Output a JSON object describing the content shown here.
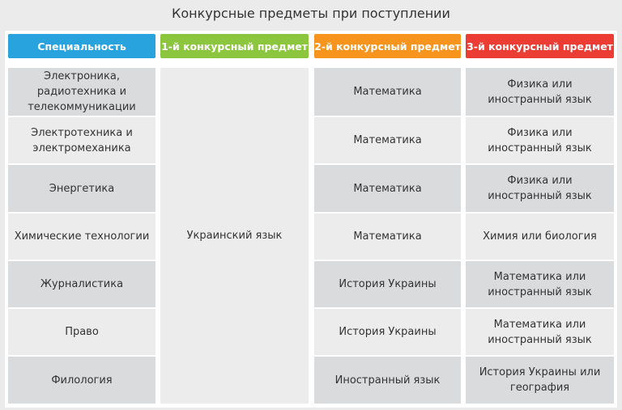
{
  "title": "Конкурсные предметы при поступлении",
  "headers": [
    {
      "label": "Специальность",
      "color": "#29a3dd"
    },
    {
      "label": "1-й конкурсный предмет",
      "color": "#8cc63f"
    },
    {
      "label": "2-й конкурсный предмет",
      "color": "#f7941d"
    },
    {
      "label": "3-й конкурсный предмет",
      "color": "#ec3d35"
    }
  ],
  "first_subject": "Украинский язык",
  "rows": [
    {
      "specialty": "Электроника, радиотехника и телекоммуникации",
      "second": "Математика",
      "third": "Физика или иностранный язык"
    },
    {
      "specialty": "Электротехника и электромеханика",
      "second": "Математика",
      "third": "Физика или иностранный язык"
    },
    {
      "specialty": "Энергетика",
      "second": "Математика",
      "third": "Физика или иностранный язык"
    },
    {
      "specialty": "Химические технологии",
      "second": "Математика",
      "third": "Химия или биология"
    },
    {
      "specialty": "Журналистика",
      "second": "История Украины",
      "third": "Математика или иностранный язык"
    },
    {
      "specialty": "Право",
      "second": "История Украины",
      "third": "Математика или иностранный язык"
    },
    {
      "specialty": "Филология",
      "second": "Иностранный язык",
      "third": "История Украины или география"
    }
  ]
}
